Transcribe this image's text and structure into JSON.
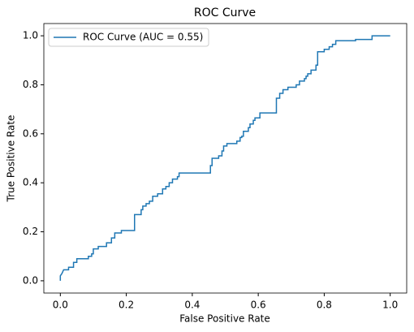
{
  "chart_data": {
    "type": "line",
    "title": "ROC Curve",
    "x_label": "False Positive Rate",
    "y_label": "True Positive Rate",
    "x": [
      0,
      0,
      0.005,
      0.01,
      0.025,
      0.025,
      0.04,
      0.04,
      0.05,
      0.05,
      0.085,
      0.085,
      0.095,
      0.095,
      0.1,
      0.1,
      0.115,
      0.115,
      0.14,
      0.14,
      0.155,
      0.155,
      0.165,
      0.165,
      0.185,
      0.185,
      0.225,
      0.225,
      0.245,
      0.245,
      0.25,
      0.25,
      0.26,
      0.26,
      0.27,
      0.27,
      0.28,
      0.28,
      0.295,
      0.295,
      0.31,
      0.31,
      0.32,
      0.32,
      0.33,
      0.33,
      0.34,
      0.34,
      0.355,
      0.355,
      0.36,
      0.36,
      0.455,
      0.455,
      0.46,
      0.46,
      0.48,
      0.48,
      0.49,
      0.49,
      0.495,
      0.495,
      0.505,
      0.505,
      0.535,
      0.535,
      0.545,
      0.545,
      0.55,
      0.55,
      0.555,
      0.555,
      0.57,
      0.57,
      0.575,
      0.575,
      0.585,
      0.585,
      0.59,
      0.59,
      0.605,
      0.605,
      0.655,
      0.655,
      0.665,
      0.665,
      0.675,
      0.675,
      0.69,
      0.69,
      0.715,
      0.715,
      0.725,
      0.725,
      0.74,
      0.74,
      0.745,
      0.745,
      0.75,
      0.75,
      0.76,
      0.76,
      0.775,
      0.775,
      0.78,
      0.78,
      0.8,
      0.8,
      0.815,
      0.815,
      0.825,
      0.825,
      0.835,
      0.835,
      0.895,
      0.895,
      0.945,
      0.945,
      1.0
    ],
    "series": [
      {
        "name": "ROC Curve (AUC = 0.55)",
        "color": "#1f77b4",
        "values": [
          0,
          0.02,
          0.03,
          0.045,
          0.045,
          0.055,
          0.055,
          0.075,
          0.075,
          0.09,
          0.09,
          0.1,
          0.1,
          0.11,
          0.11,
          0.13,
          0.13,
          0.14,
          0.14,
          0.155,
          0.155,
          0.175,
          0.175,
          0.195,
          0.195,
          0.205,
          0.205,
          0.27,
          0.27,
          0.29,
          0.29,
          0.305,
          0.305,
          0.315,
          0.315,
          0.325,
          0.325,
          0.345,
          0.345,
          0.355,
          0.355,
          0.375,
          0.375,
          0.385,
          0.385,
          0.4,
          0.4,
          0.415,
          0.415,
          0.425,
          0.425,
          0.44,
          0.44,
          0.47,
          0.47,
          0.5,
          0.5,
          0.51,
          0.51,
          0.53,
          0.53,
          0.55,
          0.55,
          0.56,
          0.56,
          0.57,
          0.57,
          0.585,
          0.585,
          0.59,
          0.59,
          0.61,
          0.61,
          0.625,
          0.625,
          0.64,
          0.64,
          0.655,
          0.655,
          0.665,
          0.665,
          0.685,
          0.685,
          0.745,
          0.745,
          0.765,
          0.765,
          0.78,
          0.78,
          0.79,
          0.79,
          0.8,
          0.8,
          0.815,
          0.815,
          0.825,
          0.825,
          0.835,
          0.835,
          0.845,
          0.845,
          0.86,
          0.86,
          0.88,
          0.88,
          0.935,
          0.935,
          0.945,
          0.945,
          0.955,
          0.955,
          0.965,
          0.965,
          0.98,
          0.98,
          0.985,
          0.985,
          1.0,
          1.0
        ]
      }
    ],
    "xlim": [
      -0.05,
      1.05
    ],
    "ylim": [
      -0.05,
      1.05
    ],
    "xticks": [
      {
        "value": 0,
        "label": "0.0"
      },
      {
        "value": 0.2,
        "label": "0.2"
      },
      {
        "value": 0.4,
        "label": "0.4"
      },
      {
        "value": 0.6,
        "label": "0.6"
      },
      {
        "value": 0.8,
        "label": "0.8"
      },
      {
        "value": 1,
        "label": "1.0"
      }
    ],
    "yticks": [
      {
        "value": 0,
        "label": "0.0"
      },
      {
        "value": 0.2,
        "label": "0.2"
      },
      {
        "value": 0.4,
        "label": "0.4"
      },
      {
        "value": 0.6,
        "label": "0.6"
      },
      {
        "value": 0.8,
        "label": "0.8"
      },
      {
        "value": 1,
        "label": "1.0"
      }
    ],
    "legend": "upper left",
    "grid": false
  }
}
